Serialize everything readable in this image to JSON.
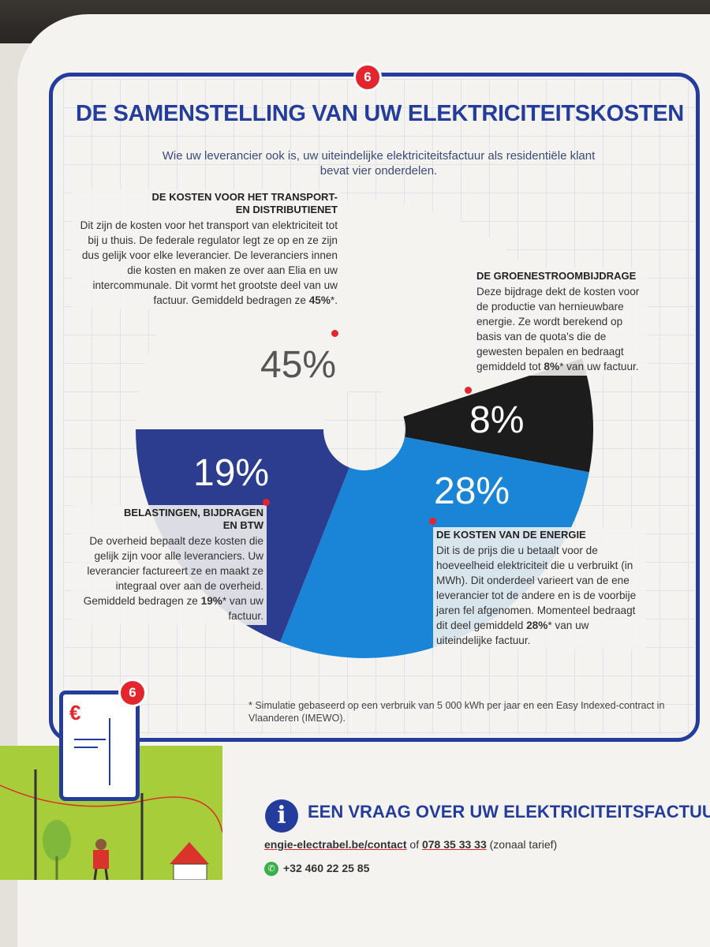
{
  "page_number": "6",
  "title": "DE SAMENSTELLING VAN UW ELEKTRICITEITSKOSTEN",
  "subtitle": "Wie uw leverancier ook is, uw uiteindelijke elektriciteitsfactuur als residentiële klant bevat vier onderdelen.",
  "sections": {
    "transport": {
      "heading_line1": "DE KOSTEN VOOR HET TRANSPORT-",
      "heading_line2": "EN DISTRIBUTIENET",
      "text": "Dit zijn de kosten voor het transport van elektriciteit tot bij u thuis. De federale regulator legt ze op en ze zijn dus gelijk voor elke leverancier. De leveranciers innen die kosten en maken ze over aan Elia en uw intercommunale. Dit vormt het grootste deel van uw factuur. Gemiddeld bedragen ze",
      "value": "45%",
      "suffix": "*."
    },
    "groene": {
      "heading": "DE GROENESTROOMBIJDRAGE",
      "text": "Deze bijdrage dekt de kosten voor de productie van hernieuwbare energie. Ze wordt berekend op basis van de quota's die de gewesten bepalen en bedraagt gemiddeld tot",
      "value": "8%",
      "suffix": "* van uw factuur."
    },
    "belasting": {
      "heading_line1": "BELASTINGEN, BIJDRAGEN",
      "heading_line2": "EN BTW",
      "text": "De overheid bepaalt deze kosten die gelijk zijn voor alle leveranciers. Uw leverancier factureert ze en maakt ze integraal over aan de overheid. Gemiddeld bedragen ze",
      "value": "19%",
      "suffix": "* van uw factuur."
    },
    "energie": {
      "heading": "DE KOSTEN VAN DE ENERGIE",
      "text": "Dit is de prijs die u betaalt voor de hoeveelheid elektriciteit die u verbruikt (in MWh). Dit onderdeel varieert van de ene leverancier tot de andere en is de voorbije jaren fel afgenomen. Momenteel bedraagt dit deel gemiddeld",
      "value": "28%",
      "suffix": "* van uw uiteindelijke factuur."
    }
  },
  "footnote": "* Simulatie gebaseerd op een verbruik van 5 000 kWh per jaar en een Easy Indexed-contract in Vlaanderen (IMEWO).",
  "contact": {
    "title": "EEN VRAAG OVER UW ELEKTRICITEITSFACTUUR?",
    "url": "engie-electrabel.be/contact",
    "of": "of",
    "phone": "078 35 33 33",
    "tariff": "(zonaal tarief)",
    "whatsapp": "+32 460 22 25 85"
  },
  "invoice_symbol": "€",
  "chart_data": {
    "type": "pie",
    "style": "donut",
    "categories": [
      "Transport- en distributienet",
      "Groenestroombijdrage",
      "Kosten van de energie",
      "Belastingen, bijdragen en btw"
    ],
    "values": [
      45,
      8,
      28,
      19
    ],
    "labels": [
      "45%",
      "8%",
      "28%",
      "19%"
    ],
    "colors": [
      "#f4f3f0",
      "#1c1c1c",
      "#1a85d6",
      "#2c3d8f"
    ],
    "label_colors": [
      "#555555",
      "#ffffff",
      "#ffffff",
      "#ffffff"
    ]
  }
}
